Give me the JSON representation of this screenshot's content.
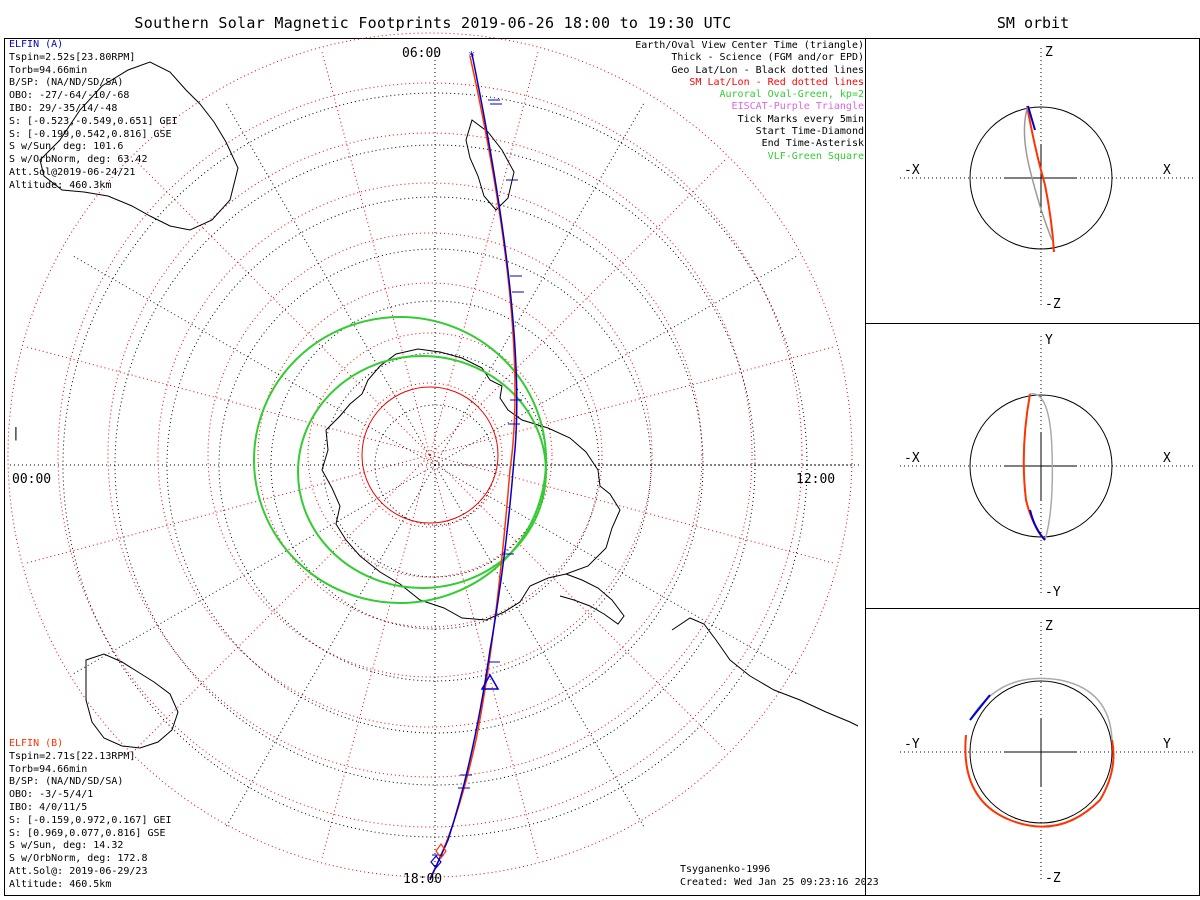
{
  "title": "Southern Solar Magnetic Footprints 2019-06-26 18:00 to 19:30 UTC",
  "orbit_title": "SM orbit",
  "map": {
    "time_labels": {
      "top": "06:00",
      "left": "00:00",
      "right": "12:00",
      "bottom": "18:00"
    },
    "left_mark": "|"
  },
  "elfin_a": {
    "name": "ELFIN (A)",
    "color": "#0000cc",
    "lines": [
      "Tspin=2.52s[23.80RPM]",
      "Torb=94.66min",
      "B/SP: (NA/ND/SD/SA)",
      "OBO: -27/-64/-10/-68",
      "IBO: 29/-35/14/-48",
      "S: [-0.523,-0.549,0.651] GEI",
      "S: [-0.199,0.542,0.816] GSE",
      "S w/Sun, deg: 101.6",
      "S w/OrbNorm, deg: 63.42",
      "Att.Sol@2019-06-24/21",
      "Altitude: 460.3km"
    ]
  },
  "elfin_b": {
    "name": "ELFIN (B)",
    "color": "#ff3300",
    "lines": [
      "Tspin=2.71s[22.13RPM]",
      "Torb=94.66min",
      "B/SP: (NA/ND/SD/SA)",
      "OBO: -3/-5/4/1",
      "IBO: 4/0/11/5",
      "S: [-0.159,0.972,0.167] GEI",
      "S: [0.969,0.077,0.816] GSE",
      "S w/Sun, deg: 14.32",
      "S w/OrbNorm, deg: 172.8",
      "Att.Sol@: 2019-06-29/23",
      "Altitude: 460.5km"
    ]
  },
  "legend": [
    {
      "text": "Earth/Oval View Center Time (triangle)",
      "color": "#000000"
    },
    {
      "text": "Thick - Science (FGM and/or EPD)",
      "color": "#000000"
    },
    {
      "text": "Geo Lat/Lon - Black dotted lines",
      "color": "#000000"
    },
    {
      "text": "SM Lat/Lon - Red dotted lines",
      "color": "#ff0000"
    },
    {
      "text": "Auroral Oval-Green, kp=2",
      "color": "#33cc33"
    },
    {
      "text": "EISCAT-Purple Triangle",
      "color": "#dd66dd"
    },
    {
      "text": "Tick Marks every 5min",
      "color": "#000000"
    },
    {
      "text": "Start Time-Diamond",
      "color": "#000000"
    },
    {
      "text": "End Time-Asterisk",
      "color": "#000000"
    },
    {
      "text": "VLF-Green Square",
      "color": "#33cc33"
    }
  ],
  "credit": {
    "model": "Tsyganenko-1996",
    "created": "Created: Wed Jan 25 09:23:16 2023"
  },
  "orbit_panels": [
    {
      "name": "xz",
      "top": "Z",
      "bottom": "-Z",
      "left": "-X",
      "right": "X"
    },
    {
      "name": "xy",
      "top": "Y",
      "bottom": "-Y",
      "left": "-X",
      "right": "X"
    },
    {
      "name": "yz",
      "top": "Z",
      "bottom": "-Z",
      "left": "-Y",
      "right": "Y"
    }
  ]
}
